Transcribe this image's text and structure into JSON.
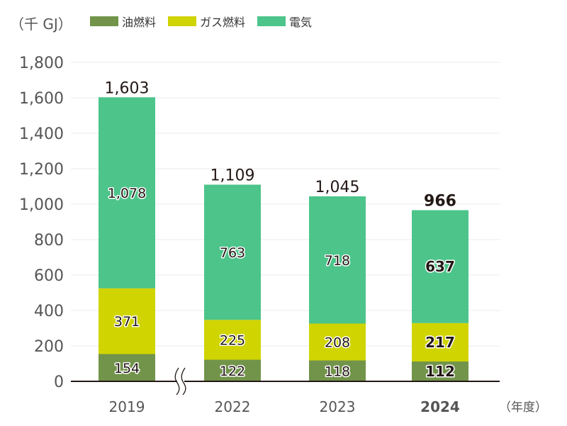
{
  "unit_label": "（千 GJ）",
  "x_unit_label": "（年度）",
  "legend": [
    {
      "label": "油燃料",
      "color": "#72944a"
    },
    {
      "label": "ガス燃料",
      "color": "#d0d400"
    },
    {
      "label": "電気",
      "color": "#4cc48a"
    }
  ],
  "chart_data": {
    "type": "bar",
    "stacked": true,
    "title": "",
    "xlabel": "（年度）",
    "ylabel": "（千 GJ）",
    "categories": [
      "2019",
      "2022",
      "2023",
      "2024"
    ],
    "highlight_category": "2024",
    "series": [
      {
        "name": "油燃料",
        "color": "#72944a",
        "values": [
          154,
          122,
          118,
          112
        ],
        "labels": [
          "154",
          "122",
          "118",
          "112"
        ]
      },
      {
        "name": "ガス燃料",
        "color": "#d0d400",
        "values": [
          371,
          225,
          208,
          217
        ],
        "labels": [
          "371",
          "225",
          "208",
          "217"
        ]
      },
      {
        "name": "電気",
        "color": "#4cc48a",
        "values": [
          1078,
          763,
          718,
          637
        ],
        "labels": [
          "1,078",
          "763",
          "718",
          "637"
        ]
      }
    ],
    "totals": [
      1603,
      1109,
      1045,
      966
    ],
    "total_labels": [
      "1,603",
      "1,109",
      "1,045",
      "966"
    ],
    "ylim": [
      0,
      1800
    ],
    "yticks": [
      0,
      200,
      400,
      600,
      800,
      1000,
      1200,
      1400,
      1600,
      1800
    ],
    "ytick_labels": [
      "0",
      "200",
      "400",
      "600",
      "800",
      "1,000",
      "1,200",
      "1,400",
      "1,600",
      "1,800"
    ],
    "grid": true,
    "axis_break_between": [
      "2019",
      "2022"
    ],
    "legend_position": "top"
  }
}
